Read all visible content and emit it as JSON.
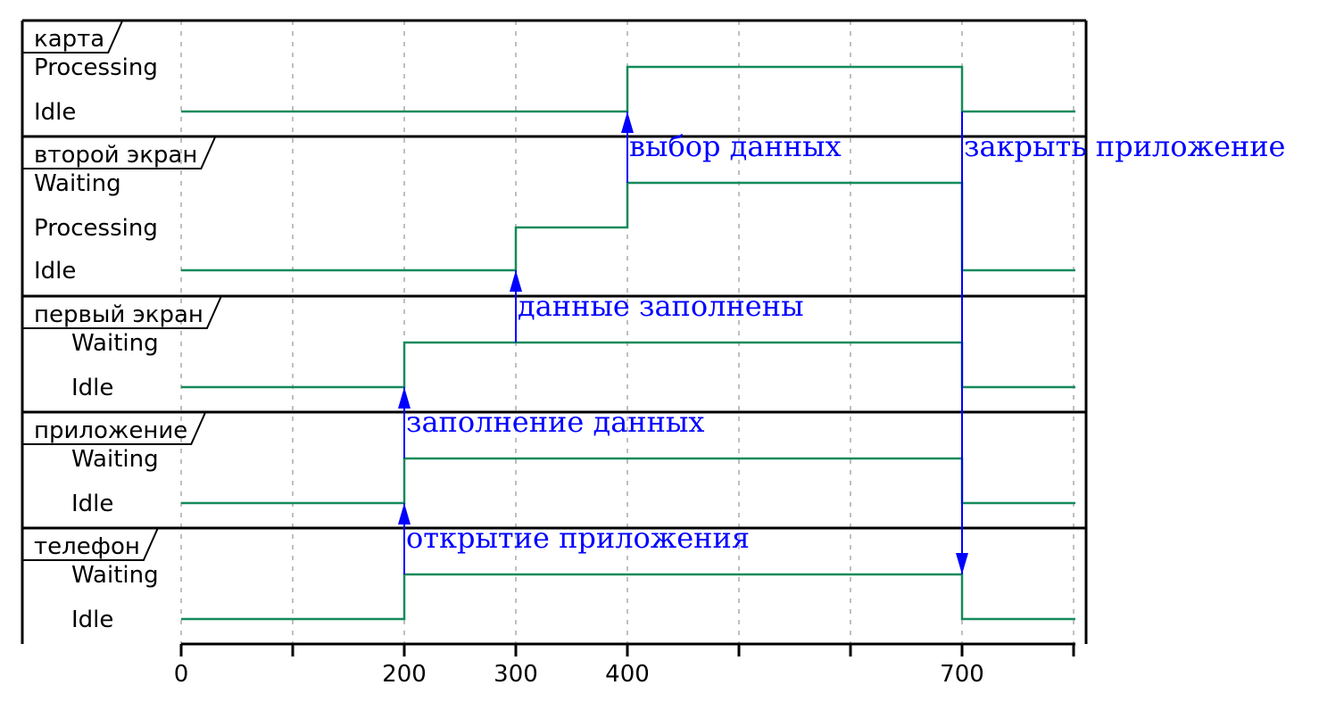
{
  "colors": {
    "signal": "#138a5a",
    "message": "#0000ff",
    "frame": "#000000",
    "grid": "#aaaaaa"
  },
  "axis": {
    "ticks": [
      0,
      100,
      200,
      300,
      400,
      500,
      600,
      700,
      800
    ],
    "labels": [
      "0",
      "",
      "200",
      "300",
      "400",
      "",
      "",
      "700",
      ""
    ]
  },
  "lanes": [
    {
      "id": "karta",
      "name": "карта",
      "states": [
        "Processing",
        "Idle"
      ],
      "changes": [
        {
          "t": 0,
          "state": "Idle"
        },
        {
          "t": 400,
          "state": "Processing"
        },
        {
          "t": 700,
          "state": "Idle"
        }
      ]
    },
    {
      "id": "vtoroy-ekran",
      "name": "второй экран",
      "states": [
        "Waiting",
        "Processing",
        "Idle"
      ],
      "changes": [
        {
          "t": 0,
          "state": "Idle"
        },
        {
          "t": 300,
          "state": "Processing"
        },
        {
          "t": 400,
          "state": "Waiting"
        },
        {
          "t": 700,
          "state": "Idle"
        }
      ]
    },
    {
      "id": "perviy-ekran",
      "name": "первый экран",
      "states": [
        "Waiting",
        "Idle"
      ],
      "changes": [
        {
          "t": 0,
          "state": "Idle"
        },
        {
          "t": 200,
          "state": "Waiting"
        },
        {
          "t": 700,
          "state": "Idle"
        }
      ]
    },
    {
      "id": "prilozhenie",
      "name": "приложение",
      "states": [
        "Waiting",
        "Idle"
      ],
      "changes": [
        {
          "t": 0,
          "state": "Idle"
        },
        {
          "t": 200,
          "state": "Waiting"
        },
        {
          "t": 700,
          "state": "Idle"
        }
      ]
    },
    {
      "id": "telefon",
      "name": "телефон",
      "states": [
        "Waiting",
        "Idle"
      ],
      "changes": [
        {
          "t": 0,
          "state": "Idle"
        },
        {
          "t": 200,
          "state": "Waiting"
        },
        {
          "t": 700,
          "state": "Idle"
        }
      ]
    }
  ],
  "messages": [
    {
      "from": "telefon",
      "to": "prilozhenie",
      "t": 200,
      "label": "открытие приложения"
    },
    {
      "from": "prilozhenie",
      "to": "perviy-ekran",
      "t": 200,
      "label": "заполнение данных"
    },
    {
      "from": "perviy-ekran",
      "to": "vtoroy-ekran",
      "t": 300,
      "label": "данные заполнены"
    },
    {
      "from": "vtoroy-ekran",
      "to": "karta",
      "t": 400,
      "label": "выбор данных"
    },
    {
      "from": "karta",
      "to": "telefon",
      "t": 700,
      "label": "закрыть приложение"
    }
  ]
}
